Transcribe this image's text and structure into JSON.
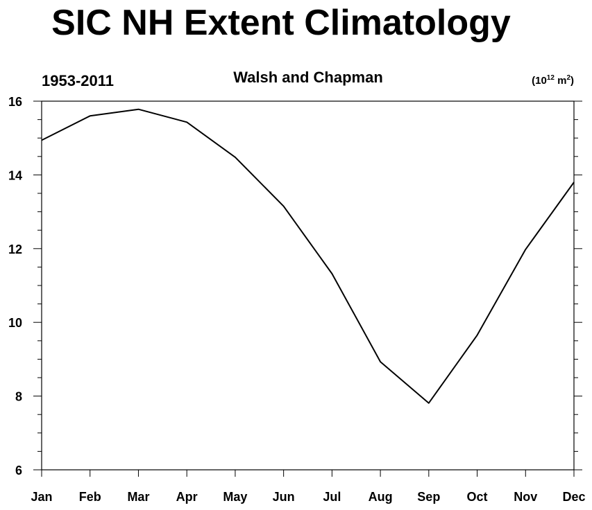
{
  "chart_data": {
    "type": "line",
    "title": "SIC NH Extent Climatology",
    "left_subtitle": "1953-2011",
    "center_subtitle": "Walsh and Chapman",
    "units_prefix": "(10",
    "units_exp1": "12",
    "units_mid": " m",
    "units_exp2": "2",
    "units_suffix": ")",
    "categories": [
      "Jan",
      "Feb",
      "Mar",
      "Apr",
      "May",
      "Jun",
      "Jul",
      "Aug",
      "Sep",
      "Oct",
      "Nov",
      "Dec"
    ],
    "series": [
      {
        "values": [
          14.94,
          15.6,
          15.78,
          15.43,
          14.48,
          13.15,
          11.32,
          8.93,
          7.81,
          9.65,
          11.98,
          13.8
        ]
      }
    ],
    "ylim": [
      6,
      16
    ],
    "yticks": [
      6,
      8,
      10,
      12,
      14,
      16
    ],
    "grid": false,
    "line_color": "#000000"
  }
}
